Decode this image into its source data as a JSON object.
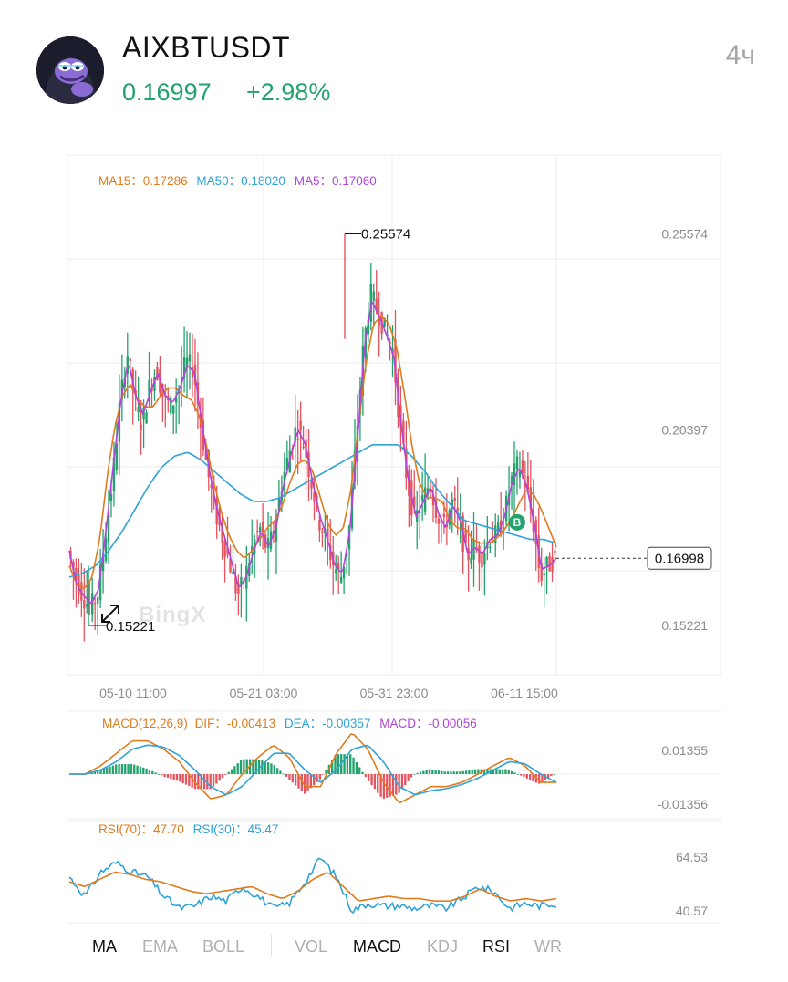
{
  "header": {
    "symbol": "AIXBTUSDT",
    "price": "0.16997",
    "change": "+2.98%",
    "timeframe": "4ч"
  },
  "legend": {
    "ma15_label": "MA15：",
    "ma15_value": "0.17286",
    "ma50_label": "MA50：",
    "ma50_value": "0.18020",
    "ma5_label": "MA5：",
    "ma5_value": "0.17060"
  },
  "watermark": "BingX",
  "macd_legend": {
    "title": "MACD(12,26,9)",
    "dif_label": "DIF：",
    "dif_value": "-0.00413",
    "dea_label": "DEA：",
    "dea_value": "-0.00357",
    "macd_label": "MACD：",
    "macd_value": "-0.00056"
  },
  "rsi_legend": {
    "rsi70_label": "RSI(70)：",
    "rsi70_value": "47.70",
    "rsi30_label": "RSI(30)：",
    "rsi30_value": "45.47"
  },
  "tabs": [
    {
      "label": "MA",
      "active": true
    },
    {
      "label": "EMA",
      "active": false
    },
    {
      "label": "BOLL",
      "active": false
    },
    {
      "label": "VOL",
      "active": false
    },
    {
      "label": "MACD",
      "active": true
    },
    {
      "label": "KDJ",
      "active": false
    },
    {
      "label": "RSI",
      "active": true
    },
    {
      "label": "WR",
      "active": false
    }
  ],
  "colors": {
    "up": "#23a26d",
    "down": "#e5535f",
    "ma15": "#e07b1c",
    "ma50": "#2ea3d8",
    "ma5": "#b144d9",
    "grid": "#ececec",
    "axis_text": "#8c8c8c"
  },
  "chart_data": {
    "type": "candlestick",
    "title": "",
    "x_ticks": [
      "05-10 11:00",
      "05-21 03:00",
      "05-31 23:00",
      "06-11 15:00"
    ],
    "y_ticks": [
      0.25574,
      0.20397,
      0.15221
    ],
    "ylim": [
      0.1392,
      0.2766
    ],
    "high_marker": 0.25574,
    "low_marker": 0.15221,
    "current_price": 0.16998,
    "buy_marker": {
      "label": "B",
      "price": 0.1795
    },
    "close_path": [
      0.172,
      0.165,
      0.16,
      0.157,
      0.16,
      0.175,
      0.19,
      0.21,
      0.225,
      0.212,
      0.205,
      0.215,
      0.22,
      0.212,
      0.21,
      0.215,
      0.222,
      0.22,
      0.205,
      0.192,
      0.182,
      0.175,
      0.168,
      0.16,
      0.165,
      0.173,
      0.178,
      0.172,
      0.178,
      0.19,
      0.198,
      0.205,
      0.2,
      0.19,
      0.18,
      0.175,
      0.168,
      0.165,
      0.175,
      0.2,
      0.225,
      0.24,
      0.235,
      0.23,
      0.225,
      0.205,
      0.19,
      0.18,
      0.185,
      0.19,
      0.182,
      0.178,
      0.185,
      0.18,
      0.17,
      0.173,
      0.17,
      0.175,
      0.176,
      0.18,
      0.19,
      0.195,
      0.19,
      0.18,
      0.165,
      0.168,
      0.17
    ],
    "ma15_path": [
      0.168,
      0.163,
      0.162,
      0.165,
      0.175,
      0.192,
      0.205,
      0.213,
      0.216,
      0.212,
      0.21,
      0.21,
      0.213,
      0.215,
      0.215,
      0.213,
      0.212,
      0.208,
      0.2,
      0.19,
      0.182,
      0.176,
      0.172,
      0.17,
      0.172,
      0.175,
      0.178,
      0.18,
      0.184,
      0.19,
      0.195,
      0.196,
      0.193,
      0.186,
      0.179,
      0.176,
      0.178,
      0.188,
      0.205,
      0.222,
      0.232,
      0.234,
      0.232,
      0.226,
      0.214,
      0.2,
      0.19,
      0.186,
      0.186,
      0.185,
      0.18,
      0.178,
      0.178,
      0.175,
      0.174,
      0.174,
      0.175,
      0.177,
      0.18,
      0.184,
      0.188,
      0.187,
      0.183,
      0.178,
      0.173
    ],
    "ma50_path": [
      0.165,
      0.166,
      0.168,
      0.172,
      0.177,
      0.183,
      0.189,
      0.194,
      0.197,
      0.198,
      0.196,
      0.193,
      0.19,
      0.187,
      0.185,
      0.185,
      0.186,
      0.188,
      0.19,
      0.192,
      0.194,
      0.196,
      0.198,
      0.2,
      0.2,
      0.2,
      0.197,
      0.193,
      0.188,
      0.184,
      0.18,
      0.179,
      0.178,
      0.177,
      0.176,
      0.175,
      0.175,
      0.174
    ],
    "ma5_path": [
      0.172,
      0.163,
      0.16,
      0.158,
      0.162,
      0.178,
      0.195,
      0.212,
      0.222,
      0.213,
      0.208,
      0.214,
      0.219,
      0.213,
      0.211,
      0.215,
      0.221,
      0.219,
      0.205,
      0.193,
      0.183,
      0.176,
      0.169,
      0.162,
      0.165,
      0.172,
      0.177,
      0.173,
      0.178,
      0.189,
      0.197,
      0.204,
      0.2,
      0.19,
      0.181,
      0.175,
      0.168,
      0.166,
      0.177,
      0.2,
      0.226,
      0.238,
      0.234,
      0.229,
      0.223,
      0.205,
      0.19,
      0.181,
      0.185,
      0.189,
      0.182,
      0.178,
      0.184,
      0.18,
      0.171,
      0.173,
      0.171,
      0.175,
      0.176,
      0.181,
      0.19,
      0.194,
      0.189,
      0.179,
      0.167,
      0.168,
      0.17
    ],
    "macd": {
      "y_ticks": [
        0.01355,
        -0.01356
      ],
      "ylim": [
        -0.018,
        0.018
      ],
      "dif_path": [
        0.0,
        0.0,
        0.004,
        0.01,
        0.016,
        0.016,
        0.012,
        0.006,
        -0.004,
        -0.012,
        -0.01,
        0.0,
        0.008,
        0.014,
        0.008,
        -0.006,
        -0.006,
        0.01,
        0.02,
        0.012,
        -0.004,
        -0.014,
        -0.01,
        -0.006,
        -0.006,
        -0.004,
        0.0,
        0.004,
        0.008,
        0.004,
        -0.004,
        -0.004
      ],
      "dea_path": [
        0.0,
        0.0,
        0.002,
        0.006,
        0.012,
        0.014,
        0.013,
        0.009,
        0.002,
        -0.006,
        -0.01,
        -0.006,
        0.002,
        0.01,
        0.01,
        0.002,
        -0.004,
        0.002,
        0.012,
        0.014,
        0.006,
        -0.006,
        -0.01,
        -0.008,
        -0.007,
        -0.005,
        -0.002,
        0.002,
        0.006,
        0.005,
        0.0,
        -0.004
      ]
    },
    "rsi": {
      "y_ticks": [
        64.53,
        40.57
      ],
      "ylim": [
        37,
        68
      ],
      "rsi70_path": [
        54,
        52,
        55,
        58,
        57,
        55,
        54,
        52,
        50,
        49,
        50,
        51,
        52,
        49,
        47,
        50,
        55,
        58,
        52,
        46,
        47,
        48,
        47,
        47,
        46,
        46,
        48,
        51,
        48,
        46,
        47,
        46,
        47
      ],
      "rsi30_path": [
        56,
        48,
        58,
        62,
        58,
        56,
        48,
        43,
        44,
        48,
        46,
        52,
        48,
        43,
        45,
        54,
        64,
        56,
        42,
        45,
        44,
        44,
        43,
        44,
        43,
        47,
        52,
        50,
        43,
        45,
        44,
        45
      ]
    }
  }
}
